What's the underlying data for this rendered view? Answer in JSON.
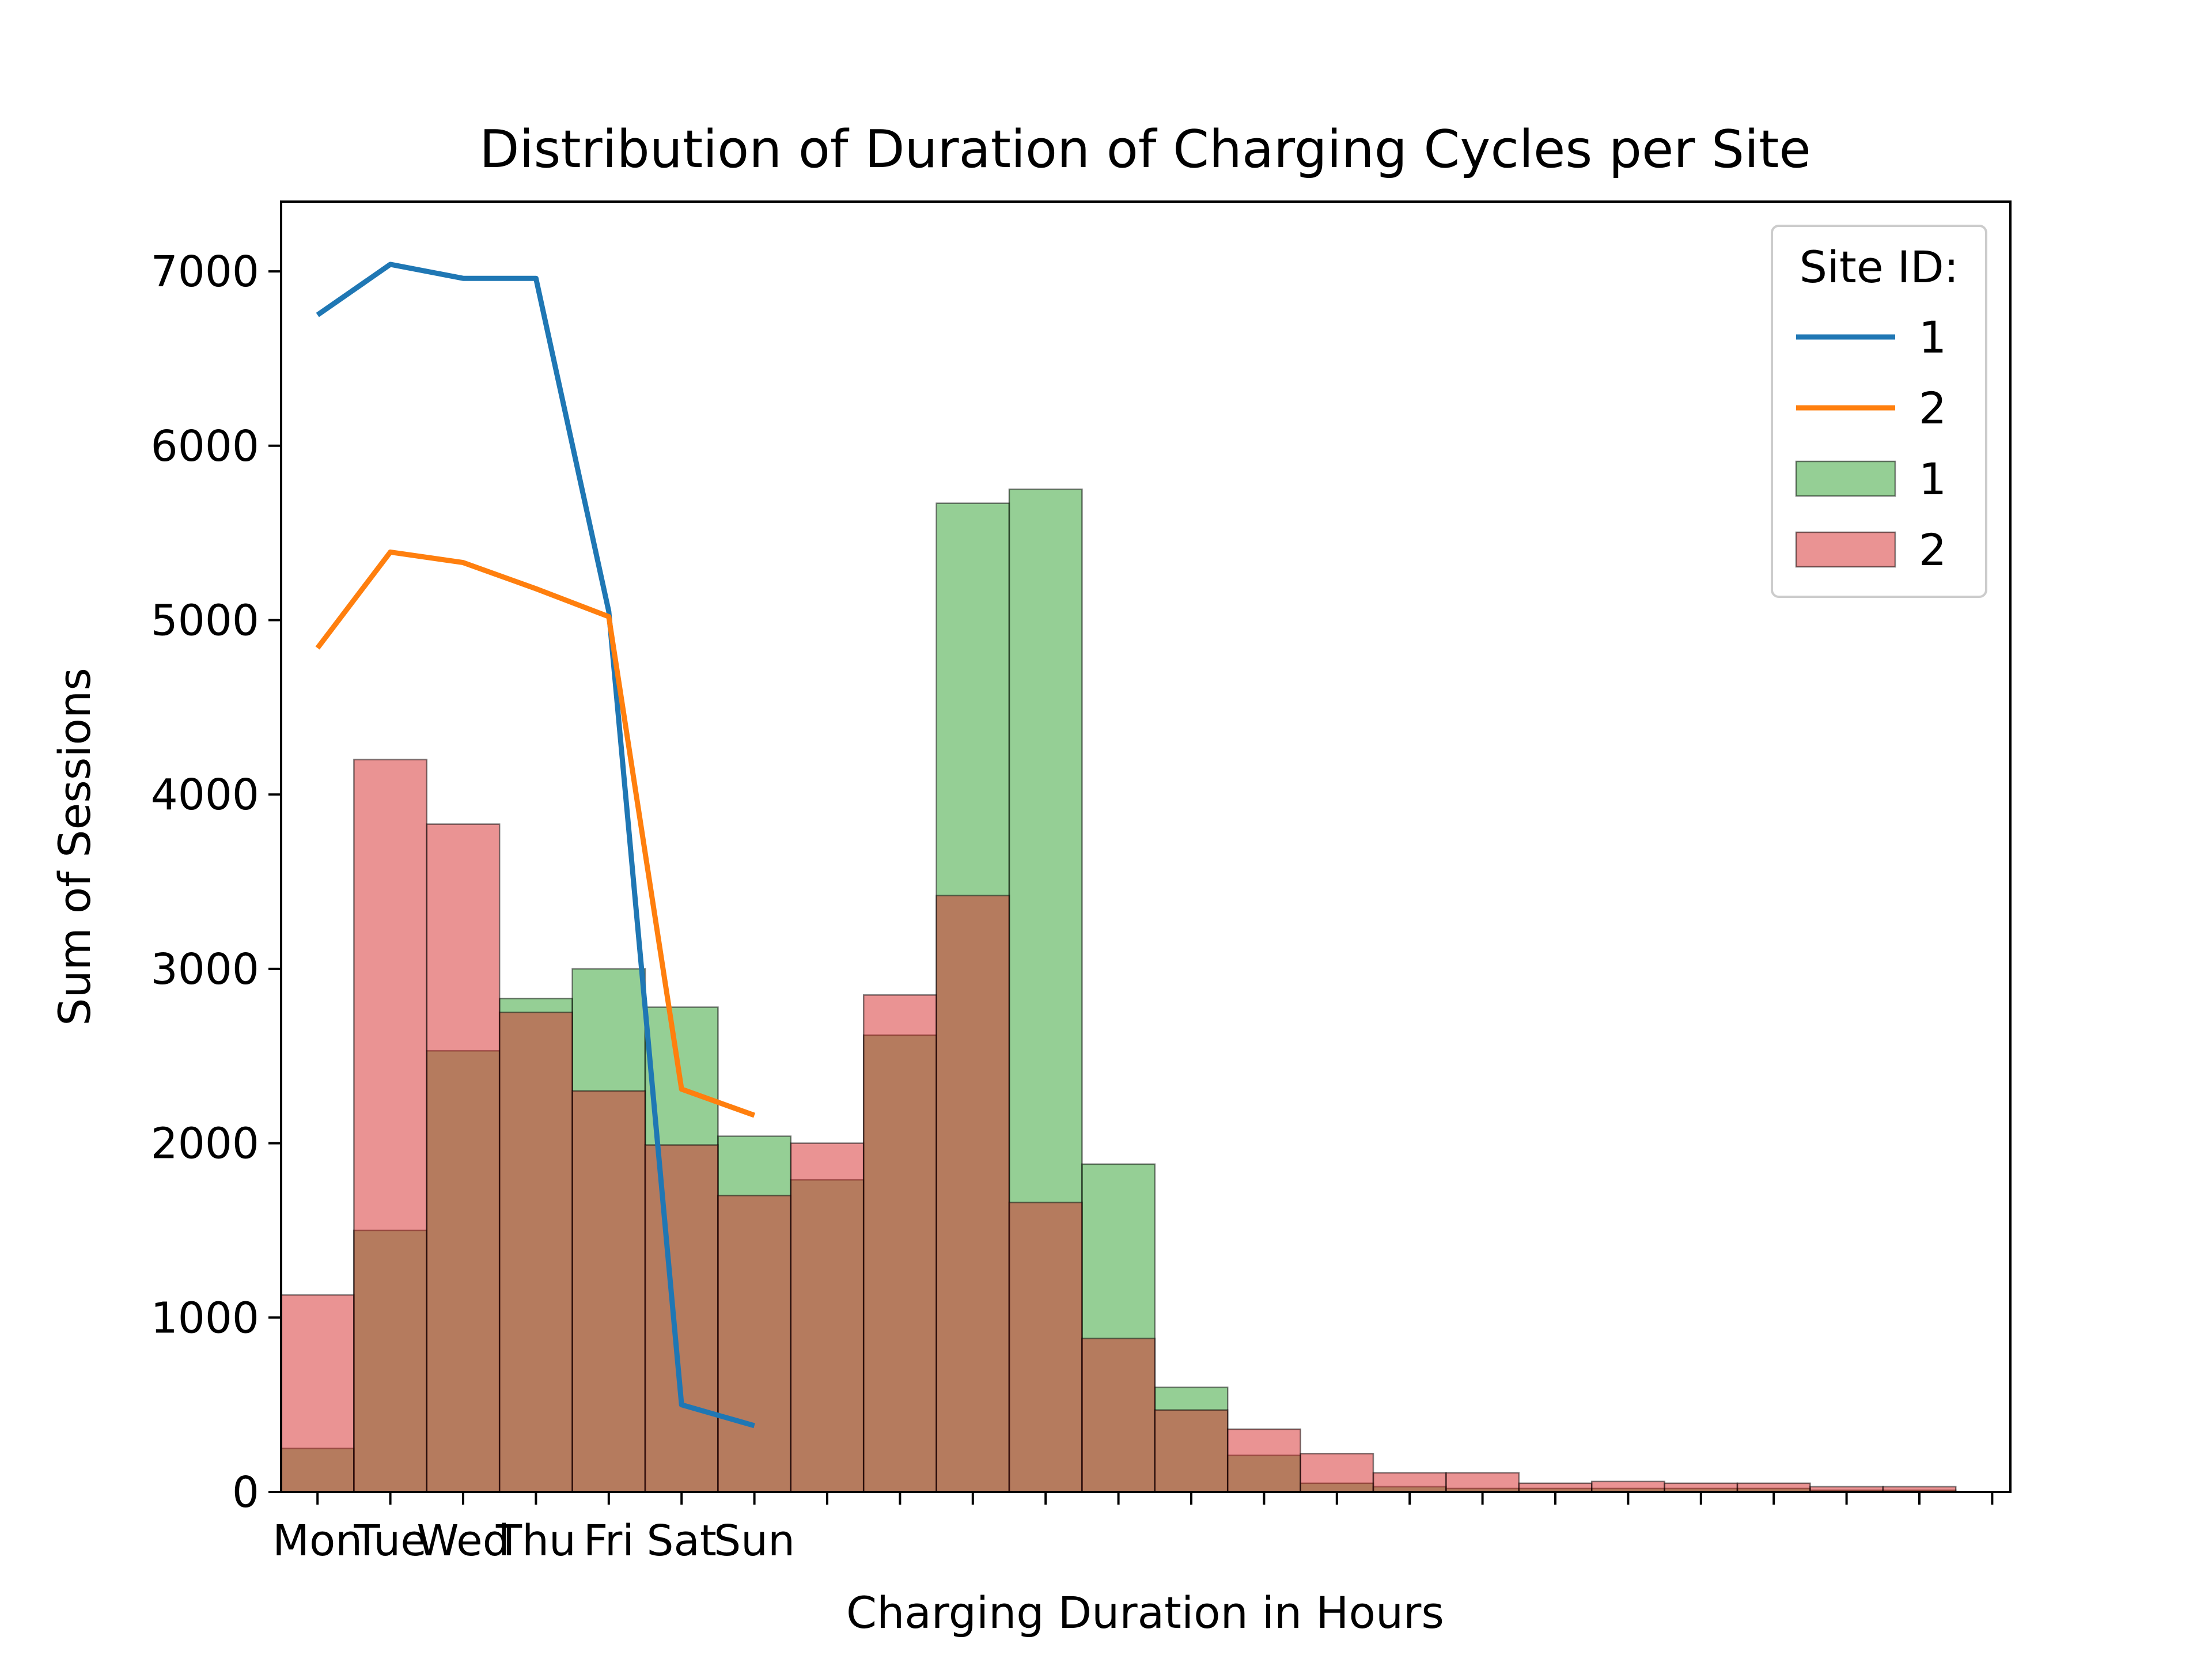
{
  "chart_data": {
    "type": "bar",
    "title": "Distribution of Duration of Charging Cycles per Site",
    "xlabel": "Charging Duration in Hours",
    "ylabel": "Sum of Sessions",
    "xlim": [
      -0.5,
      23.25
    ],
    "ylim": [
      0,
      7400
    ],
    "y_ticks": [
      0,
      1000,
      2000,
      3000,
      4000,
      5000,
      6000,
      7000
    ],
    "x_ticks": [
      0,
      1,
      2,
      3,
      4,
      5,
      6,
      7,
      8,
      9,
      10,
      11,
      12,
      13,
      14,
      15,
      16,
      17,
      18,
      19,
      20,
      21,
      22,
      23
    ],
    "x_tick_labels": [
      "Mon",
      "Tue",
      "Wed",
      "Thu",
      "Fri",
      "Sat",
      "Sun"
    ],
    "hist_bin_edges": [
      -0.5,
      0.5,
      1.5,
      2.5,
      3.5,
      4.5,
      5.5,
      6.5,
      7.5,
      8.5,
      9.5,
      10.5,
      11.5,
      12.5,
      13.5,
      14.5,
      15.5,
      16.5,
      17.5,
      18.5,
      19.5,
      20.5,
      21.5,
      22.5
    ],
    "histograms": [
      {
        "name": "1",
        "color": "#2ca02c",
        "values": [
          250,
          1500,
          2530,
          2830,
          3000,
          2780,
          2040,
          1790,
          2620,
          5670,
          5750,
          1880,
          600,
          210,
          50,
          30,
          20,
          20,
          20,
          20,
          20,
          10,
          10
        ]
      },
      {
        "name": "2",
        "color": "#d62728",
        "values": [
          1130,
          4200,
          3830,
          2750,
          2300,
          1990,
          1700,
          2000,
          2850,
          3420,
          1660,
          880,
          470,
          360,
          220,
          110,
          110,
          50,
          60,
          50,
          50,
          30,
          30
        ]
      }
    ],
    "lines": [
      {
        "name": "1",
        "color": "#1f77b4",
        "x": [
          "Mon",
          "Tue",
          "Wed",
          "Thu",
          "Fri",
          "Sat",
          "Sun"
        ],
        "values": [
          6750,
          7040,
          6960,
          6960,
          5050,
          500,
          380
        ]
      },
      {
        "name": "2",
        "color": "#ff7f0e",
        "x": [
          "Mon",
          "Tue",
          "Wed",
          "Thu",
          "Fri",
          "Sat",
          "Sun"
        ],
        "values": [
          4840,
          5390,
          5330,
          5180,
          5020,
          2310,
          2160
        ]
      }
    ],
    "legend": {
      "title": "Site ID:",
      "placement": "top-right",
      "entries": [
        {
          "label": "1",
          "kind": "line",
          "color": "#1f77b4"
        },
        {
          "label": "2",
          "kind": "line",
          "color": "#ff7f0e"
        },
        {
          "label": "1",
          "kind": "patch",
          "color": "#2ca02c"
        },
        {
          "label": "2",
          "kind": "patch",
          "color": "#d62728"
        }
      ]
    },
    "grid": false
  }
}
